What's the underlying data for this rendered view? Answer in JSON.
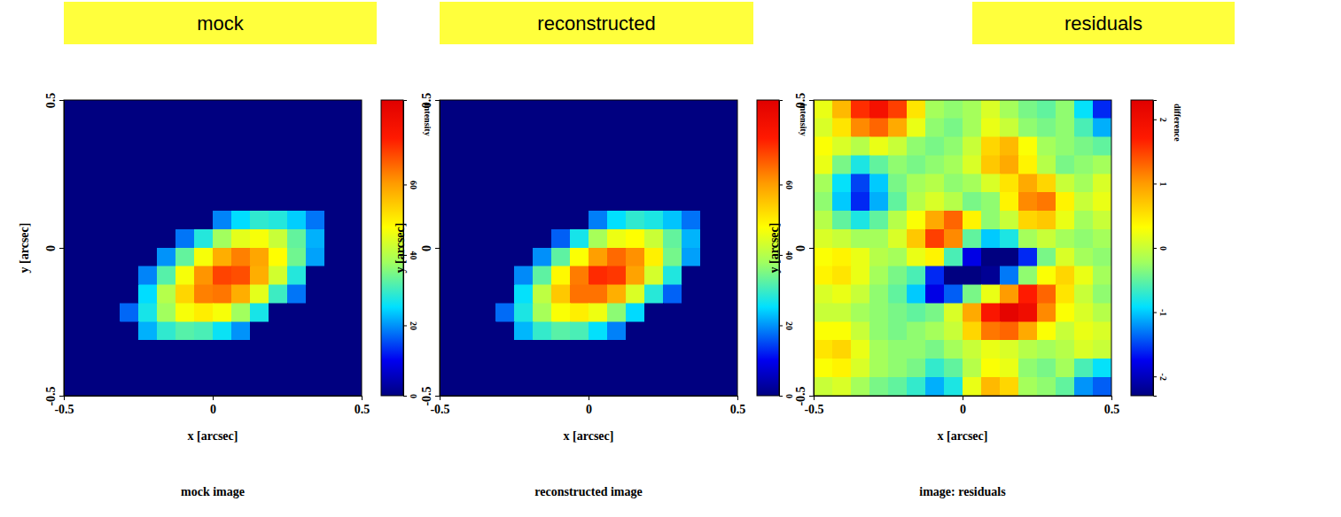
{
  "chart_data": [
    {
      "type": "heatmap",
      "title": "mock",
      "subtitle": "mock image",
      "x_label": "x [arcsec]",
      "y_label": "y [arcsec]",
      "xlim": [
        -0.5,
        0.5
      ],
      "ylim": [
        -0.5,
        0.5
      ],
      "xticks": [
        -0.5,
        0,
        0.5
      ],
      "yticks": [
        -0.5,
        0,
        0.5
      ],
      "colorbar": {
        "label": "intensity",
        "range": [
          0,
          84
        ],
        "ticks": [
          0,
          20,
          40,
          60
        ]
      },
      "cells": [
        [
          0,
          0,
          0,
          0,
          0,
          0,
          0,
          0,
          0,
          0,
          0,
          0,
          0,
          0,
          0,
          0
        ],
        [
          0,
          0,
          0,
          0,
          0,
          0,
          0,
          0,
          0,
          0,
          0,
          0,
          0,
          0,
          0,
          0
        ],
        [
          0,
          0,
          0,
          0,
          0,
          0,
          0,
          0,
          0,
          0,
          0,
          0,
          0,
          0,
          0,
          0
        ],
        [
          0,
          0,
          0,
          0,
          0,
          0,
          0,
          0,
          0,
          0,
          0,
          0,
          0,
          0,
          0,
          0
        ],
        [
          0,
          0,
          0,
          0,
          0,
          0,
          0,
          0,
          0,
          0,
          0,
          0,
          0,
          0,
          0,
          0
        ],
        [
          0,
          0,
          0,
          0,
          0,
          0,
          0,
          0,
          0,
          0,
          0,
          0,
          0,
          0,
          0,
          0
        ],
        [
          0,
          0,
          0,
          0,
          0,
          0,
          0,
          0,
          19,
          25,
          29,
          28,
          24,
          18,
          0,
          0
        ],
        [
          0,
          0,
          0,
          0,
          0,
          0,
          18,
          28,
          38,
          45,
          47,
          42,
          33,
          22,
          0,
          0
        ],
        [
          0,
          0,
          0,
          0,
          0,
          20,
          33,
          47,
          58,
          63,
          59,
          48,
          34,
          21,
          0,
          0
        ],
        [
          0,
          0,
          0,
          0,
          19,
          32,
          47,
          61,
          69,
          68,
          58,
          43,
          28,
          0,
          0,
          0
        ],
        [
          0,
          0,
          0,
          0,
          25,
          40,
          53,
          63,
          64,
          58,
          45,
          30,
          18,
          0,
          0,
          0
        ],
        [
          0,
          0,
          0,
          17,
          27,
          38,
          47,
          50,
          47,
          38,
          27,
          0,
          0,
          0,
          0,
          0
        ],
        [
          0,
          0,
          0,
          0,
          22,
          29,
          32,
          31,
          26,
          20,
          0,
          0,
          0,
          0,
          0,
          0
        ],
        [
          0,
          0,
          0,
          0,
          0,
          0,
          0,
          0,
          0,
          0,
          0,
          0,
          0,
          0,
          0,
          0
        ],
        [
          0,
          0,
          0,
          0,
          0,
          0,
          0,
          0,
          0,
          0,
          0,
          0,
          0,
          0,
          0,
          0
        ],
        [
          0,
          0,
          0,
          0,
          0,
          0,
          0,
          0,
          0,
          0,
          0,
          0,
          0,
          0,
          0,
          0
        ]
      ]
    },
    {
      "type": "heatmap",
      "title": "reconstructed",
      "subtitle": "reconstructed image",
      "x_label": "x [arcsec]",
      "y_label": "y [arcsec]",
      "xlim": [
        -0.5,
        0.5
      ],
      "ylim": [
        -0.5,
        0.5
      ],
      "xticks": [
        -0.5,
        0,
        0.5
      ],
      "yticks": [
        -0.5,
        0,
        0.5
      ],
      "colorbar": {
        "label": "intensity",
        "range": [
          0,
          84
        ],
        "ticks": [
          0,
          20,
          40,
          60
        ]
      },
      "cells": [
        [
          0,
          0,
          0,
          0,
          0,
          0,
          0,
          0,
          0,
          0,
          0,
          0,
          0,
          0,
          0,
          0
        ],
        [
          0,
          0,
          0,
          0,
          0,
          0,
          0,
          0,
          0,
          0,
          0,
          0,
          0,
          0,
          0,
          0
        ],
        [
          0,
          0,
          0,
          0,
          0,
          0,
          0,
          0,
          0,
          0,
          0,
          0,
          0,
          0,
          0,
          0
        ],
        [
          0,
          0,
          0,
          0,
          0,
          0,
          0,
          0,
          0,
          0,
          0,
          0,
          0,
          0,
          0,
          0
        ],
        [
          0,
          0,
          0,
          0,
          0,
          0,
          0,
          0,
          0,
          0,
          0,
          0,
          0,
          0,
          0,
          0
        ],
        [
          0,
          0,
          0,
          0,
          0,
          0,
          0,
          0,
          0,
          0,
          0,
          0,
          0,
          0,
          0,
          0
        ],
        [
          0,
          0,
          0,
          0,
          0,
          0,
          0,
          0,
          18.6,
          25.3,
          29,
          27.4,
          23.3,
          17.8,
          0,
          0
        ],
        [
          0,
          0,
          0,
          0,
          0,
          0,
          16.5,
          26.9,
          38.5,
          46,
          47.8,
          42.2,
          33,
          22.2,
          0,
          0
        ],
        [
          0,
          0,
          0,
          0,
          0,
          19.8,
          32.6,
          47.6,
          59.8,
          65.3,
          61.4,
          49.6,
          34.4,
          20.9,
          0,
          0
        ],
        [
          0,
          0,
          0,
          0,
          19.4,
          32.6,
          48.6,
          63.4,
          71.5,
          70.2,
          59.3,
          43.3,
          27.7,
          0,
          0,
          0
        ],
        [
          0,
          0,
          0,
          0,
          25.5,
          41,
          54.8,
          64.4,
          64.4,
          57.8,
          44,
          28.3,
          16.7,
          0,
          0,
          0
        ],
        [
          0,
          0,
          0,
          17.3,
          27.4,
          38.5,
          47.4,
          49.9,
          46.1,
          36.2,
          24.8,
          0,
          0,
          0,
          0,
          0
        ],
        [
          0,
          0,
          0,
          0,
          22.4,
          29.3,
          32.2,
          31,
          25.4,
          18.8,
          0,
          0,
          0,
          0,
          0,
          0
        ],
        [
          0,
          0,
          0,
          0,
          0,
          0,
          0,
          0,
          0,
          0,
          0,
          0,
          0,
          0,
          0,
          0
        ],
        [
          0,
          0,
          0,
          0,
          0,
          0,
          0,
          0,
          0,
          0,
          0,
          0,
          0,
          0,
          0,
          0
        ],
        [
          0,
          0,
          0,
          0,
          0,
          0,
          0,
          0,
          0,
          0,
          0,
          0,
          0,
          0,
          0,
          0
        ]
      ]
    },
    {
      "type": "heatmap",
      "title": "residuals",
      "subtitle": "image: residuals",
      "x_label": "x [arcsec]",
      "y_label": "y [arcsec]",
      "xlim": [
        -0.5,
        0.5
      ],
      "ylim": [
        -0.5,
        0.5
      ],
      "xticks": [
        -0.5,
        0,
        0.5
      ],
      "yticks": [
        -0.5,
        0,
        0.5
      ],
      "colorbar": {
        "label": "difference",
        "range": [
          -2.3,
          2.3
        ],
        "ticks": [
          -2,
          -1,
          0,
          1,
          2
        ]
      },
      "cells": [
        [
          0.2,
          0.8,
          1.6,
          1.9,
          1.5,
          0.5,
          -0.2,
          -0.3,
          -0.2,
          0.1,
          -0.2,
          -0.4,
          -0.5,
          -0.3,
          -0.9,
          -1.6
        ],
        [
          0.1,
          0.5,
          1.1,
          1.3,
          0.9,
          0.2,
          -0.3,
          -0.4,
          -0.2,
          0.2,
          0.0,
          -0.3,
          -0.4,
          -0.3,
          -0.6,
          -1.1
        ],
        [
          0.3,
          0.1,
          -0.1,
          0.2,
          0.0,
          -0.3,
          -0.4,
          -0.3,
          0.0,
          0.6,
          0.8,
          0.3,
          -0.2,
          -0.3,
          -0.4,
          -0.5
        ],
        [
          0.2,
          -0.4,
          -0.8,
          -0.5,
          -0.3,
          -0.4,
          -0.3,
          -0.2,
          0.1,
          0.7,
          0.9,
          0.4,
          -0.1,
          -0.4,
          -0.3,
          -0.2
        ],
        [
          -0.2,
          -0.9,
          -1.5,
          -1.0,
          -0.4,
          -0.2,
          -0.1,
          -0.3,
          -0.2,
          0.1,
          0.5,
          0.9,
          0.6,
          0.0,
          -0.2,
          0.1
        ],
        [
          -0.3,
          -1.0,
          -1.6,
          -1.1,
          -0.5,
          -0.1,
          0.1,
          -0.1,
          -0.4,
          -0.3,
          0.4,
          1.1,
          1.2,
          0.4,
          0.0,
          0.2
        ],
        [
          -0.1,
          -0.5,
          -0.8,
          -0.5,
          -0.1,
          0.3,
          0.9,
          1.3,
          0.4,
          -0.3,
          0.0,
          0.6,
          0.7,
          0.2,
          -0.2,
          0.0
        ],
        [
          0.1,
          0.0,
          -0.2,
          -0.2,
          0.1,
          0.7,
          1.5,
          1.1,
          -0.5,
          -1.0,
          -0.8,
          -0.2,
          0.0,
          -0.2,
          -0.3,
          -0.2
        ],
        [
          0.3,
          0.4,
          0.2,
          -0.1,
          -0.2,
          0.2,
          0.4,
          -0.6,
          -1.8,
          -2.3,
          -2.4,
          -1.6,
          -0.4,
          0.1,
          -0.2,
          -0.3
        ],
        [
          0.4,
          0.5,
          0.2,
          -0.2,
          -0.4,
          -0.6,
          -1.6,
          -2.4,
          -2.5,
          -2.2,
          -1.3,
          -0.3,
          0.3,
          0.6,
          0.2,
          -0.2
        ],
        [
          0.1,
          0.2,
          0.0,
          -0.3,
          -0.5,
          -1.0,
          -1.8,
          -1.4,
          -0.4,
          0.2,
          1.0,
          1.7,
          1.3,
          0.5,
          0.0,
          -0.3
        ],
        [
          0.0,
          0.0,
          -0.2,
          -0.3,
          -0.4,
          -0.5,
          -0.4,
          0.1,
          0.9,
          1.8,
          2.2,
          2.0,
          1.1,
          0.3,
          0.1,
          -0.1
        ],
        [
          0.3,
          0.3,
          0.0,
          -0.3,
          -0.4,
          -0.3,
          -0.2,
          0.0,
          0.6,
          1.2,
          1.3,
          0.9,
          0.3,
          0.0,
          0.2,
          0.1
        ],
        [
          0.5,
          0.6,
          0.2,
          -0.2,
          -0.3,
          -0.3,
          -0.4,
          -0.2,
          0.0,
          0.2,
          0.1,
          -0.1,
          -0.2,
          -0.1,
          0.1,
          0.0
        ],
        [
          0.3,
          0.4,
          0.1,
          -0.2,
          -0.3,
          -0.4,
          -0.7,
          -0.5,
          -0.1,
          0.3,
          0.2,
          -0.3,
          -0.4,
          -0.2,
          -0.6,
          -0.9
        ],
        [
          0.0,
          0.1,
          -0.2,
          -0.4,
          -0.5,
          -0.7,
          -1.1,
          -0.8,
          0.2,
          0.8,
          0.6,
          -0.2,
          -0.3,
          -0.5,
          -1.2,
          -1.4
        ]
      ]
    }
  ]
}
